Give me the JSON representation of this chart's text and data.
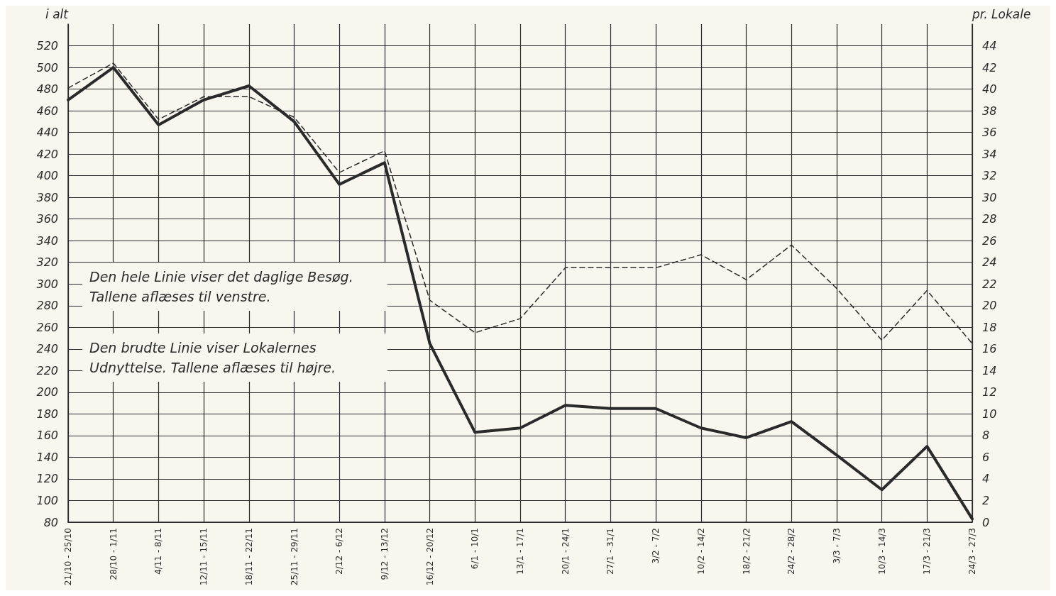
{
  "chart_data": {
    "type": "line",
    "ylabel": "i alt",
    "y2label": "pr. Lokale",
    "categories": [
      "21/10 - 25/10",
      "28/10 - 1/11",
      "4/11 - 8/11",
      "12/11 - 15/11",
      "18/11 - 22/11",
      "25/11 - 29/11",
      "2/12 - 6/12",
      "9/12 - 13/12",
      "16/12 - 20/12",
      "6/1 - 10/1",
      "13/1 - 17/1",
      "20/1 - 24/1",
      "27/1 - 31/1",
      "3/2 - 7/2",
      "10/2 - 14/2",
      "18/2 - 21/2",
      "24/2 - 28/2",
      "3/3 - 7/3",
      "10/3 - 14/3",
      "17/3 - 21/3",
      "24/3 - 27/3"
    ],
    "series": [
      {
        "color": "#2a2a2a",
        "line_style": "solid",
        "values": [
          470,
          500,
          447,
          470,
          483,
          450,
          392,
          412,
          245,
          163,
          167,
          188,
          185,
          185,
          167,
          158,
          173,
          142,
          110,
          150,
          83
        ]
      },
      {
        "color": "#2a2a2a",
        "line_style": "dashed",
        "axis": "y2",
        "values": [
          40.1,
          42.4,
          37.2,
          39.3,
          39.3,
          37.4,
          32.3,
          34.3,
          20.5,
          17.5,
          18.8,
          23.5,
          23.5,
          23.5,
          24.7,
          22.4,
          25.6,
          21.6,
          16.8,
          21.4,
          16.5
        ]
      }
    ],
    "ylim": [
      80,
      540
    ],
    "yticks": [
      80,
      100,
      120,
      140,
      160,
      180,
      200,
      220,
      240,
      260,
      280,
      300,
      320,
      340,
      360,
      380,
      400,
      420,
      440,
      460,
      480,
      500,
      520
    ],
    "y2lim": [
      0,
      46
    ],
    "y2ticks": [
      0,
      2,
      4,
      6,
      8,
      10,
      12,
      14,
      16,
      18,
      20,
      22,
      24,
      26,
      28,
      30,
      32,
      34,
      36,
      38,
      40,
      42,
      44
    ],
    "grid": true,
    "marker": "none",
    "annotations": [
      "Den hele Linie viser det daglige Besøg. Tallene aflæses til venstre.",
      "Den brudte Linie viser Lokalernes Udnyttelse. Tallene aflæses til højre."
    ]
  }
}
